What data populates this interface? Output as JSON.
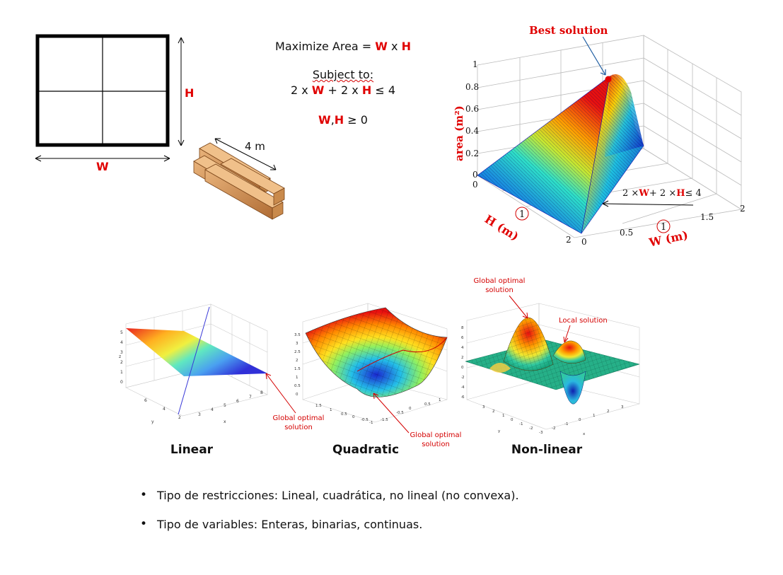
{
  "fence": {
    "w_label": "W",
    "h_label": "H"
  },
  "lumber": {
    "length_label": "4 m"
  },
  "problem": {
    "objective_prefix": "Maximize Area = ",
    "objective_w": "W",
    "objective_x": " x ",
    "objective_h": "H",
    "subject_to": "Subject to:",
    "c1_a": "2 x ",
    "c1_w": "W",
    "c1_b": " + 2 x ",
    "c1_h": "H",
    "c1_c": " ≤ 4",
    "c2_w": "W",
    "c2_comma": ",",
    "c2_h": "H",
    "c2_rest": " ≥ 0"
  },
  "surface_plot": {
    "best_label": "Best solution",
    "zlabel": "area  (m²)",
    "ylabel": "H (m)",
    "xlabel": "W (m)",
    "constraint_label": "2 ×W+ 2 ×H≤ 4",
    "constraint_w": "W",
    "constraint_h": "H",
    "z_ticks": [
      "0",
      "0.2",
      "0.4",
      "0.6",
      "0.8",
      "1"
    ],
    "w_ticks": [
      "0",
      "0.5",
      "1",
      "1.5",
      "2"
    ],
    "h_ticks": [
      "0",
      "1",
      "2"
    ]
  },
  "examples": {
    "linear": {
      "name": "Linear",
      "annotation_line1": "Global optimal",
      "annotation_line2": "solution"
    },
    "quadratic": {
      "name": "Quadratic",
      "annotation_line1": "Global optimal",
      "annotation_line2": "solution"
    },
    "nonlinear": {
      "name": "Non-linear",
      "global_line1": "Global optimal",
      "global_line2": "solution",
      "local": "Local solution"
    }
  },
  "bullets": [
    "Tipo de restricciones: Lineal, cuadrática, no lineal (no convexa).",
    "Tipo de variables: Enteras, binarias, continuas."
  ],
  "colors": {
    "accent_red": "#e00000",
    "surface_blue": "#1a1ad0"
  }
}
